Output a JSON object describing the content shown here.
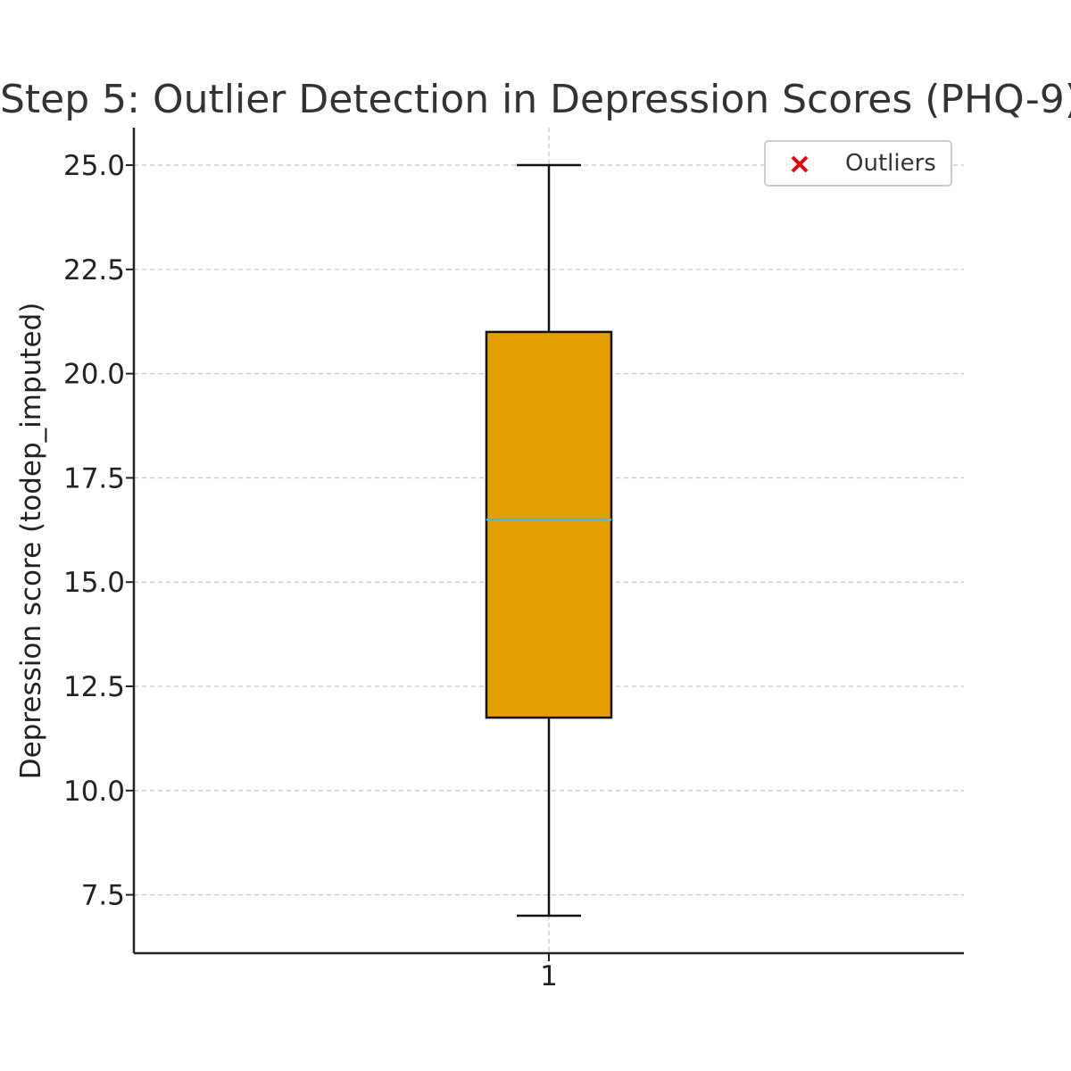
{
  "chart_data": {
    "type": "box",
    "title": "Step 5: Outlier Detection in Depression Scores (PHQ-9)",
    "xlabel": "",
    "ylabel": "Depression score (todep_imputed)",
    "categories": [
      "1"
    ],
    "boxes": [
      {
        "category": "1",
        "whisker_low": 7.0,
        "q1": 11.75,
        "median": 16.5,
        "q3": 21.0,
        "whisker_high": 25.0,
        "outliers": []
      }
    ],
    "ylim": [
      6.1,
      25.9
    ],
    "yticks": [
      7.5,
      10.0,
      12.5,
      15.0,
      17.5,
      20.0,
      22.5,
      25.0
    ],
    "ytick_labels": [
      "7.5",
      "10.0",
      "12.5",
      "15.0",
      "17.5",
      "20.0",
      "22.5",
      "25.0"
    ],
    "grid": true,
    "legend": {
      "placement": "top-right",
      "entries": [
        {
          "label": "Outliers",
          "marker": "x",
          "color": "#e8000b"
        }
      ]
    },
    "colors": {
      "box_fill": "#e5a000",
      "box_edge": "#111111",
      "median": "#56b4d3",
      "whisker": "#111111",
      "outlier": "#e8000b"
    }
  }
}
